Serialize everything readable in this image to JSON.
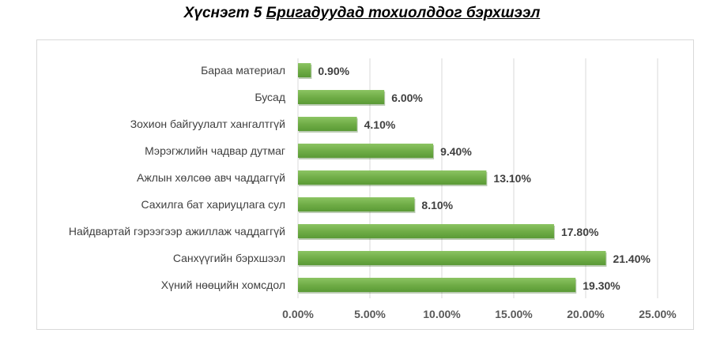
{
  "chart_data": {
    "type": "bar",
    "orientation": "horizontal",
    "title_prefix": "Хүснэгт 5",
    "title_rest": "Бригадуудад тохиолддог бэрхшээл",
    "categories": [
      "Бараа материал",
      "Бусад",
      "Зохион байгуулалт хангалтгүй",
      "Мэрэгжлийн чадвар дутмаг",
      "Ажлын хөлсөө авч чаддаггүй",
      "Сахилга бат хариуцлага сул",
      "Найдвартай гэрээгээр ажиллаж чаддаггүй",
      "Санхүүгийн бэрхшээл",
      "Хүний нөөцийн хомсдол"
    ],
    "values": [
      0.9,
      6.0,
      4.1,
      9.4,
      13.1,
      8.1,
      17.8,
      21.4,
      19.3
    ],
    "value_labels": [
      "0.90%",
      "6.00%",
      "4.10%",
      "9.40%",
      "13.10%",
      "8.10%",
      "17.80%",
      "21.40%",
      "19.30%"
    ],
    "xlim": [
      0,
      25
    ],
    "xticks": [
      0,
      5,
      10,
      15,
      20,
      25
    ],
    "xtick_labels": [
      "0.00%",
      "5.00%",
      "10.00%",
      "15.00%",
      "20.00%",
      "25.00%"
    ],
    "grid": "vertical",
    "bar_color": "#70ad47",
    "xlabel": "",
    "ylabel": ""
  }
}
